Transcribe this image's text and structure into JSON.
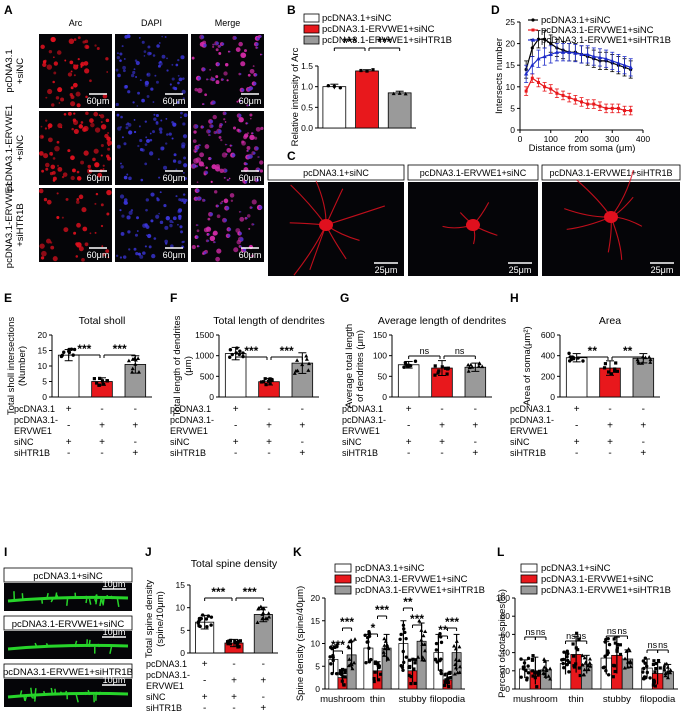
{
  "colors": {
    "white": "#ffffff",
    "red": "#e8181c",
    "gray": "#9a9a9a",
    "blue": "#1d2bc8",
    "black": "#000000",
    "green": "#27d42a",
    "micro_bg": "#050508",
    "arc_red": "#e0101e",
    "dapi_blue": "#3a35d8",
    "merge_mag": "#d42aa8"
  },
  "panels": {
    "A": {
      "letter": "A",
      "cols": [
        "Arc",
        "DAPI",
        "Merge"
      ],
      "scale": "60μm",
      "rows": [
        {
          "lines": [
            "pcDNA3.1",
            "+siNC"
          ]
        },
        {
          "lines": [
            "pcDNA3.1-ERVWE1",
            "+siNC"
          ]
        },
        {
          "lines": [
            "pcDNA3.1-ERVWE1",
            "+siHTR1B"
          ]
        }
      ]
    },
    "B": {
      "letter": "B",
      "ylabel": "Relative intensity of Arc",
      "ticks": [
        "0.0",
        "0.5",
        "1.0",
        "1.5"
      ],
      "sig": [
        "***",
        "***"
      ],
      "legend": [
        "pcDNA3.1+siNC",
        "pcDNA3.1-ERVWE1+siNC",
        "pcDNA3.1-ERVWE1+siHTR1B"
      ]
    },
    "C": {
      "letter": "C",
      "labels": [
        "pcDNA3.1+siNC",
        "pcDNA3.1-ERVWE1+siNC",
        "pcDNA3.1-ERVWE1+siHTR1B"
      ],
      "scale": "25μm"
    },
    "D": {
      "letter": "D",
      "ylabel": "Intersects number",
      "xlabel": "Distance from soma (μm)",
      "yticks": [
        "0",
        "5",
        "10",
        "15",
        "20",
        "25"
      ],
      "xticks": [
        "0",
        "100",
        "200",
        "300",
        "400"
      ],
      "legend": [
        "pcDNA3.1+siNC",
        "pcDNA3.1-ERVWE1+siNC",
        "pcDNA3.1-ERVWE1+siHTR1B"
      ]
    },
    "E": {
      "letter": "E",
      "title": "Total sholl",
      "ylabel": "Total sholl intersections\n(Number)",
      "ticks": [
        "0",
        "5",
        "10",
        "15",
        "20"
      ],
      "sig": [
        "***",
        "***"
      ]
    },
    "F": {
      "letter": "F",
      "title": "Total length of dendrites",
      "ylabel": "Total length of dendrites\n(μm)",
      "ticks": [
        "0",
        "500",
        "1000",
        "1500"
      ],
      "sig": [
        "***",
        "***"
      ]
    },
    "G": {
      "letter": "G",
      "title": "Average length of dendrites",
      "ylabel": "Average total length\nof dendrites (μm)",
      "ticks": [
        "0",
        "50",
        "100",
        "150"
      ],
      "sig": [
        "ns",
        "ns"
      ]
    },
    "H": {
      "letter": "H",
      "title": "Area",
      "ylabel": "Area of soma(μm²)",
      "ticks": [
        "0",
        "200",
        "400",
        "600"
      ],
      "sig": [
        "**",
        "**"
      ]
    },
    "I": {
      "letter": "I",
      "labels": [
        "pcDNA3.1+siNC",
        "pcDNA3.1-ERVWE1+siNC",
        "pcDNA3.1-ERVWE1+siHTR1B"
      ],
      "scale": "10μm"
    },
    "J": {
      "letter": "J",
      "title": "Total spine density",
      "ylabel": "Total spine density\n(spine/10μm)",
      "ticks": [
        "0",
        "5",
        "10",
        "15"
      ],
      "sig": [
        "***",
        "***"
      ]
    },
    "K": {
      "letter": "K",
      "ylabel": "Spine density (spine/40μm)",
      "ticks": [
        "0",
        "5",
        "10",
        "15",
        "20"
      ],
      "categories": [
        "mushroom",
        "thin",
        "stubby",
        "filopodia"
      ],
      "sig": [
        [
          "***",
          "***"
        ],
        [
          "*",
          "***"
        ],
        [
          "**",
          "***"
        ],
        [
          "**",
          "***"
        ]
      ],
      "legend": [
        "pcDNA3.1+siNC",
        "pcDNA3.1-ERVWE1+siNC",
        "pcDNA3.1-ERVWE1+siHTR1B"
      ]
    },
    "L": {
      "letter": "L",
      "ylabel": "Percent of total spines(%)",
      "ticks": [
        "0",
        "20",
        "40",
        "60",
        "80",
        "100"
      ],
      "categories": [
        "mushroom",
        "thin",
        "stubby",
        "filopodia"
      ],
      "sig": [
        [
          "ns",
          "ns"
        ],
        [
          "ns",
          "ns"
        ],
        [
          "ns",
          "ns"
        ],
        [
          "ns",
          "ns"
        ]
      ],
      "legend": [
        "pcDNA3.1+siNC",
        "pcDNA3.1-ERVWE1+siNC",
        "pcDNA3.1-ERVWE1+siHTR1B"
      ]
    }
  },
  "treatment_table": {
    "rows": [
      "pcDNA3.1",
      "pcDNA3.1-",
      "ERVWE1",
      "siNC",
      "siHTR1B"
    ],
    "signs": [
      [
        "+",
        "-",
        "-"
      ],
      [
        "-",
        "+",
        "+"
      ],
      [
        "",
        "",
        ""
      ],
      [
        "+",
        "+",
        "-"
      ],
      [
        "-",
        "-",
        "+"
      ]
    ]
  },
  "chart_data": [
    {
      "panel": "B",
      "type": "bar",
      "categories": [
        "pcDNA3.1+siNC",
        "pcDNA3.1-ERVWE1+siNC",
        "pcDNA3.1-ERVWE1+siHTR1B"
      ],
      "values": [
        1.0,
        1.38,
        0.85
      ],
      "errors": [
        0.06,
        0.03,
        0.04
      ],
      "ylim": [
        0,
        1.5
      ],
      "ylabel": "Relative intensity of Arc"
    },
    {
      "panel": "D",
      "type": "line",
      "xlabel": "Distance from soma (μm)",
      "ylabel": "Intersects number",
      "xlim": [
        0,
        400
      ],
      "ylim": [
        0,
        25
      ],
      "x": [
        20,
        40,
        60,
        80,
        100,
        120,
        140,
        160,
        180,
        200,
        220,
        240,
        260,
        280,
        300,
        320,
        340,
        360
      ],
      "series": [
        {
          "name": "pcDNA3.1+siNC",
          "values": [
            14,
            19,
            21,
            21,
            20,
            19,
            18.5,
            18,
            18,
            17.5,
            17,
            16.5,
            16,
            16,
            15.5,
            15,
            14.5,
            14
          ],
          "err": 2
        },
        {
          "name": "pcDNA3.1-ERVWE1+siNC",
          "values": [
            9,
            12,
            11,
            10,
            9.5,
            8.5,
            8,
            7.5,
            7,
            6.5,
            6,
            6,
            5.5,
            5,
            5,
            5,
            4.5,
            4.5
          ],
          "err": 1
        },
        {
          "name": "pcDNA3.1-ERVWE1+siHTR1B",
          "values": [
            13,
            15,
            16.5,
            17,
            17.5,
            18,
            18,
            18,
            17.8,
            17.5,
            17.5,
            17,
            16.8,
            16.5,
            16,
            15.5,
            15,
            14.5
          ],
          "err": 2
        }
      ]
    },
    {
      "panel": "E",
      "type": "bar",
      "values": [
        13.5,
        5,
        10.5
      ],
      "errors": [
        1.8,
        1.2,
        2.8
      ],
      "ylim": [
        0,
        20
      ]
    },
    {
      "panel": "F",
      "type": "bar",
      "values": [
        1050,
        370,
        820
      ],
      "errors": [
        150,
        80,
        250
      ],
      "ylim": [
        0,
        1500
      ]
    },
    {
      "panel": "G",
      "type": "bar",
      "values": [
        78,
        70,
        72
      ],
      "errors": [
        8,
        18,
        10
      ],
      "ylim": [
        0,
        150
      ]
    },
    {
      "panel": "H",
      "type": "bar",
      "values": [
        380,
        280,
        375
      ],
      "errors": [
        40,
        70,
        45
      ],
      "ylim": [
        0,
        600
      ]
    },
    {
      "panel": "J",
      "type": "bar",
      "values": [
        6.8,
        2.2,
        8.5
      ],
      "errors": [
        1.5,
        0.8,
        1.6
      ],
      "ylim": [
        0,
        15
      ]
    },
    {
      "panel": "K",
      "type": "bar",
      "categories": [
        "mushroom",
        "thin",
        "stubby",
        "filopodia"
      ],
      "ylim": [
        0,
        20
      ],
      "series": [
        {
          "name": "pcDNA3.1+siNC",
          "values": [
            6.5,
            9,
            10,
            8
          ],
          "errors": [
            3,
            3,
            5,
            4
          ]
        },
        {
          "name": "pcDNA3.1-ERVWE1+siNC",
          "values": [
            2.5,
            4,
            4,
            2
          ],
          "errors": [
            1.5,
            2,
            2.5,
            1.5
          ]
        },
        {
          "name": "pcDNA3.1-ERVWE1+siHTR1B",
          "values": [
            7.5,
            9,
            10.5,
            8
          ],
          "errors": [
            3,
            3,
            4,
            4
          ]
        }
      ]
    },
    {
      "panel": "L",
      "type": "bar",
      "categories": [
        "mushroom",
        "thin",
        "stubby",
        "filopodia"
      ],
      "ylim": [
        0,
        100
      ],
      "series": [
        {
          "name": "pcDNA3.1+siNC",
          "values": [
            22,
            28,
            34,
            23
          ],
          "errors": [
            10,
            12,
            18,
            10
          ]
        },
        {
          "name": "pcDNA3.1-ERVWE1+siNC",
          "values": [
            20,
            38,
            37,
            17
          ],
          "errors": [
            15,
            20,
            20,
            12
          ]
        },
        {
          "name": "pcDNA3.1-ERVWE1+siHTR1B",
          "values": [
            21,
            27,
            33,
            19
          ],
          "errors": [
            10,
            10,
            10,
            8
          ]
        }
      ]
    }
  ]
}
